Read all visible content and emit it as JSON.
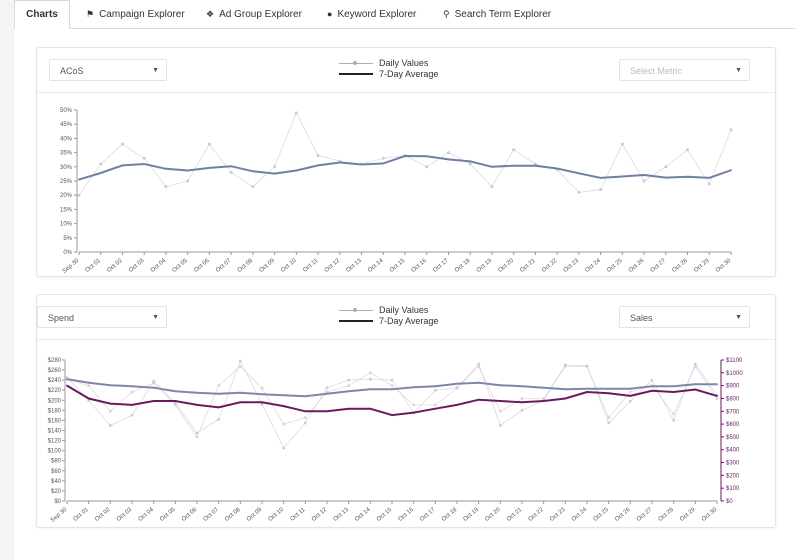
{
  "tabs": [
    {
      "label": "Charts",
      "icon": ""
    },
    {
      "label": "Campaign Explorer",
      "icon": "flag-icon"
    },
    {
      "label": "Ad Group Explorer",
      "icon": "cubes-icon"
    },
    {
      "label": "Keyword Explorer",
      "icon": "circle-icon"
    },
    {
      "label": "Search Term Explorer",
      "icon": "search-icon"
    }
  ],
  "colors": {
    "acos_line": "#6f7fa6",
    "spend_line": "#7d87aa",
    "sales_line": "#6b1a60",
    "daily": "#c8ccd6"
  },
  "top_panel": {
    "metric_select": "ACoS",
    "metric_select_right": "Select Metric",
    "legend_daily": "Daily Values",
    "legend_avg": "7-Day Average"
  },
  "bottom_panel": {
    "metric_select": "Spend",
    "metric_select_right": "Sales",
    "legend_daily": "Daily Values",
    "legend_avg": "7-Day Average"
  },
  "chart_data": [
    {
      "type": "line",
      "x": [
        "Sep 30",
        "Oct 01",
        "Oct 02",
        "Oct 03",
        "Oct 04",
        "Oct 05",
        "Oct 06",
        "Oct 07",
        "Oct 08",
        "Oct 09",
        "Oct 10",
        "Oct 11",
        "Oct 12",
        "Oct 13",
        "Oct 14",
        "Oct 15",
        "Oct 16",
        "Oct 17",
        "Oct 18",
        "Oct 19",
        "Oct 20",
        "Oct 21",
        "Oct 22",
        "Oct 23",
        "Oct 24",
        "Oct 25",
        "Oct 26",
        "Oct 27",
        "Oct 28",
        "Oct 29",
        "Oct 30"
      ],
      "yticks": [
        "0%",
        "5%",
        "10%",
        "15%",
        "20%",
        "25%",
        "30%",
        "35%",
        "40%",
        "45%",
        "50%"
      ],
      "ylim": [
        0,
        50
      ],
      "series": [
        {
          "values": [
            20,
            31,
            38,
            33,
            23,
            25,
            38,
            28,
            23,
            30,
            49,
            34,
            32,
            31,
            33,
            34,
            30,
            35,
            31,
            23,
            36,
            31,
            29,
            21,
            22,
            38,
            25,
            30,
            36,
            24,
            43
          ]
        },
        {
          "values": [
            25.5,
            27.8,
            30.5,
            31,
            29.3,
            28.7,
            29.6,
            30.2,
            28.4,
            27.6,
            28.7,
            30.5,
            31.5,
            30.8,
            31.2,
            33.8,
            33.7,
            32.6,
            31.9,
            30,
            30.4,
            30.4,
            29.4,
            27.7,
            26.1,
            26.6,
            27.1,
            26.2,
            26.5,
            26.1,
            28.8
          ]
        }
      ]
    },
    {
      "type": "line",
      "x": [
        "Sep 30",
        "Oct 01",
        "Oct 02",
        "Oct 03",
        "Oct 04",
        "Oct 05",
        "Oct 06",
        "Oct 07",
        "Oct 08",
        "Oct 09",
        "Oct 10",
        "Oct 11",
        "Oct 12",
        "Oct 13",
        "Oct 14",
        "Oct 15",
        "Oct 16",
        "Oct 17",
        "Oct 18",
        "Oct 19",
        "Oct 20",
        "Oct 21",
        "Oct 22",
        "Oct 23",
        "Oct 24",
        "Oct 25",
        "Oct 26",
        "Oct 27",
        "Oct 28",
        "Oct 29",
        "Oct 30"
      ],
      "yticks_left": [
        "$0",
        "$20",
        "$40",
        "$60",
        "$80",
        "$100",
        "$120",
        "$140",
        "$160",
        "$180",
        "$200",
        "$220",
        "$240",
        "$260",
        "$280"
      ],
      "yticks_right": [
        "$0",
        "$100",
        "$200",
        "$300",
        "$400",
        "$500",
        "$600",
        "$700",
        "$800",
        "$900",
        "$1000",
        "$1100"
      ],
      "ylim_left": [
        0,
        280
      ],
      "ylim_right": [
        0,
        1100
      ],
      "series": [
        {
          "values": [
            245,
            200,
            150,
            170,
            238,
            195,
            135,
            162,
            278,
            192,
            105,
            155,
            225,
            240,
            242,
            240,
            175,
            220,
            225,
            272,
            150,
            180,
            200,
            270,
            268,
            155,
            198,
            240,
            160,
            272,
            210
          ]
        },
        {
          "values": [
            242,
            235,
            230,
            228,
            225,
            218,
            215,
            213,
            215,
            212,
            210,
            208,
            213,
            218,
            222,
            222,
            226,
            228,
            233,
            235,
            230,
            228,
            225,
            222,
            223,
            223,
            223,
            228,
            228,
            232,
            232
          ]
        },
        {
          "values": [
            900,
            800,
            760,
            750,
            780,
            780,
            750,
            730,
            770,
            770,
            740,
            700,
            700,
            720,
            720,
            670,
            690,
            720,
            750,
            790,
            780,
            770,
            780,
            800,
            850,
            840,
            820,
            860,
            850,
            870,
            820
          ]
        },
        {
          "values": [
            950,
            900,
            700,
            850,
            920,
            750,
            500,
            900,
            1050,
            880,
            600,
            650,
            850,
            900,
            1000,
            900,
            750,
            750,
            880,
            1050,
            700,
            800,
            800,
            1050,
            1050,
            650,
            850,
            900,
            680,
            1050,
            800
          ]
        }
      ]
    }
  ]
}
